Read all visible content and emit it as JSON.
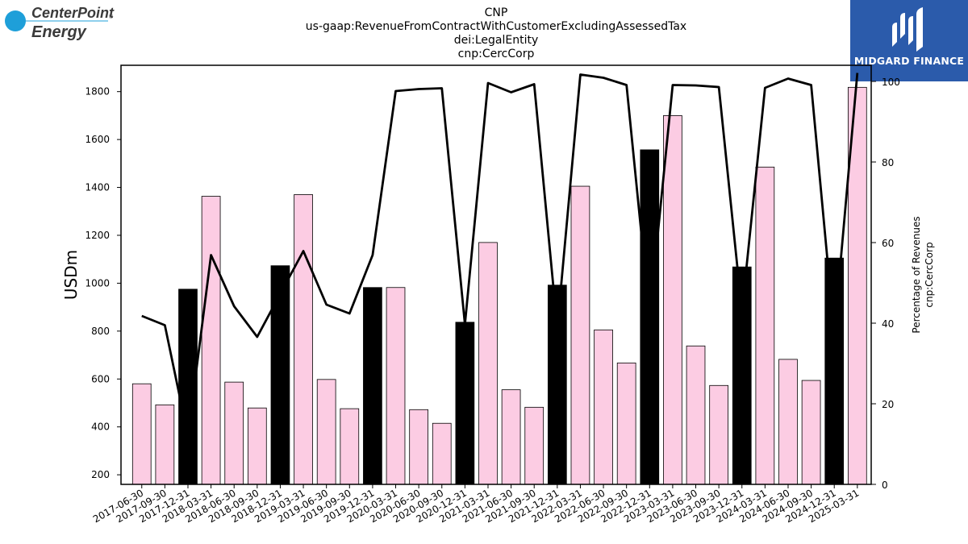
{
  "logos": {
    "left_brand_line1": "CenterPoint",
    "left_brand_line2": "Energy",
    "left_brand_mark": "®",
    "right_brand": "MIDGARD FINANCE",
    "right_icon": "midgard-monogram-icon",
    "left_icon": "centerpoint-circle-icon"
  },
  "chart_data": {
    "type": "bar",
    "title_lines": [
      "CNP",
      "us-gaap:RevenueFromContractWithCustomerExcludingAssessedTax",
      "dei:LegalEntity",
      "cnp:CercCorp"
    ],
    "ylabel": "USDm",
    "ylabel_right": [
      "Percentage of Revenues",
      "cnp:CercCorp"
    ],
    "ylim": [
      160,
      1910
    ],
    "ylim_right": [
      0,
      104
    ],
    "yticks": [
      200,
      400,
      600,
      800,
      1000,
      1200,
      1400,
      1600,
      1800
    ],
    "yticks_right": [
      0,
      20,
      40,
      60,
      80,
      100
    ],
    "categories": [
      "2017-06-30",
      "2017-09-30",
      "2017-12-31",
      "2018-03-31",
      "2018-06-30",
      "2018-09-30",
      "2018-12-31",
      "2019-03-31",
      "2019-06-30",
      "2019-09-30",
      "2019-12-31",
      "2020-03-31",
      "2020-06-30",
      "2020-09-30",
      "2020-12-31",
      "2021-03-31",
      "2021-06-30",
      "2021-09-30",
      "2021-12-31",
      "2022-03-31",
      "2022-06-30",
      "2022-09-30",
      "2022-12-31",
      "2023-03-31",
      "2023-06-30",
      "2023-09-30",
      "2023-12-31",
      "2024-03-31",
      "2024-06-30",
      "2024-09-30",
      "2024-12-31",
      "2025-03-31"
    ],
    "series": [
      {
        "axis": "left",
        "kind": "bar",
        "values": [
          580,
          492,
          975,
          1363,
          587,
          479,
          1073,
          1370,
          598,
          476,
          982,
          982,
          472,
          415,
          837,
          1170,
          555,
          482,
          992,
          1405,
          805,
          667,
          1557,
          1700,
          738,
          573,
          1068,
          1485,
          682,
          594,
          1105,
          1818
        ],
        "annual_flags": [
          false,
          false,
          true,
          false,
          false,
          false,
          true,
          false,
          false,
          false,
          true,
          false,
          false,
          false,
          true,
          false,
          false,
          false,
          true,
          false,
          false,
          false,
          true,
          false,
          false,
          false,
          true,
          false,
          false,
          false,
          true,
          false
        ]
      },
      {
        "axis": "right",
        "kind": "line",
        "values": [
          41.8,
          39.5,
          12,
          56.9,
          44.2,
          36.6,
          47.3,
          57.9,
          44.6,
          42.4,
          56.9,
          97.6,
          98.1,
          98.3,
          39.7,
          99.6,
          97.3,
          99.3,
          38.8,
          101.7,
          100.9,
          99.1,
          41.8,
          99.1,
          99,
          98.6,
          42.9,
          98.4,
          100.7,
          99.1,
          37.5,
          102.1
        ]
      }
    ],
    "colors": {
      "quarter_bar": "#fccce3",
      "annual_bar": "#000000",
      "line": "#000000",
      "bar_edge": "#000000"
    },
    "grid": false,
    "legend": "none"
  }
}
